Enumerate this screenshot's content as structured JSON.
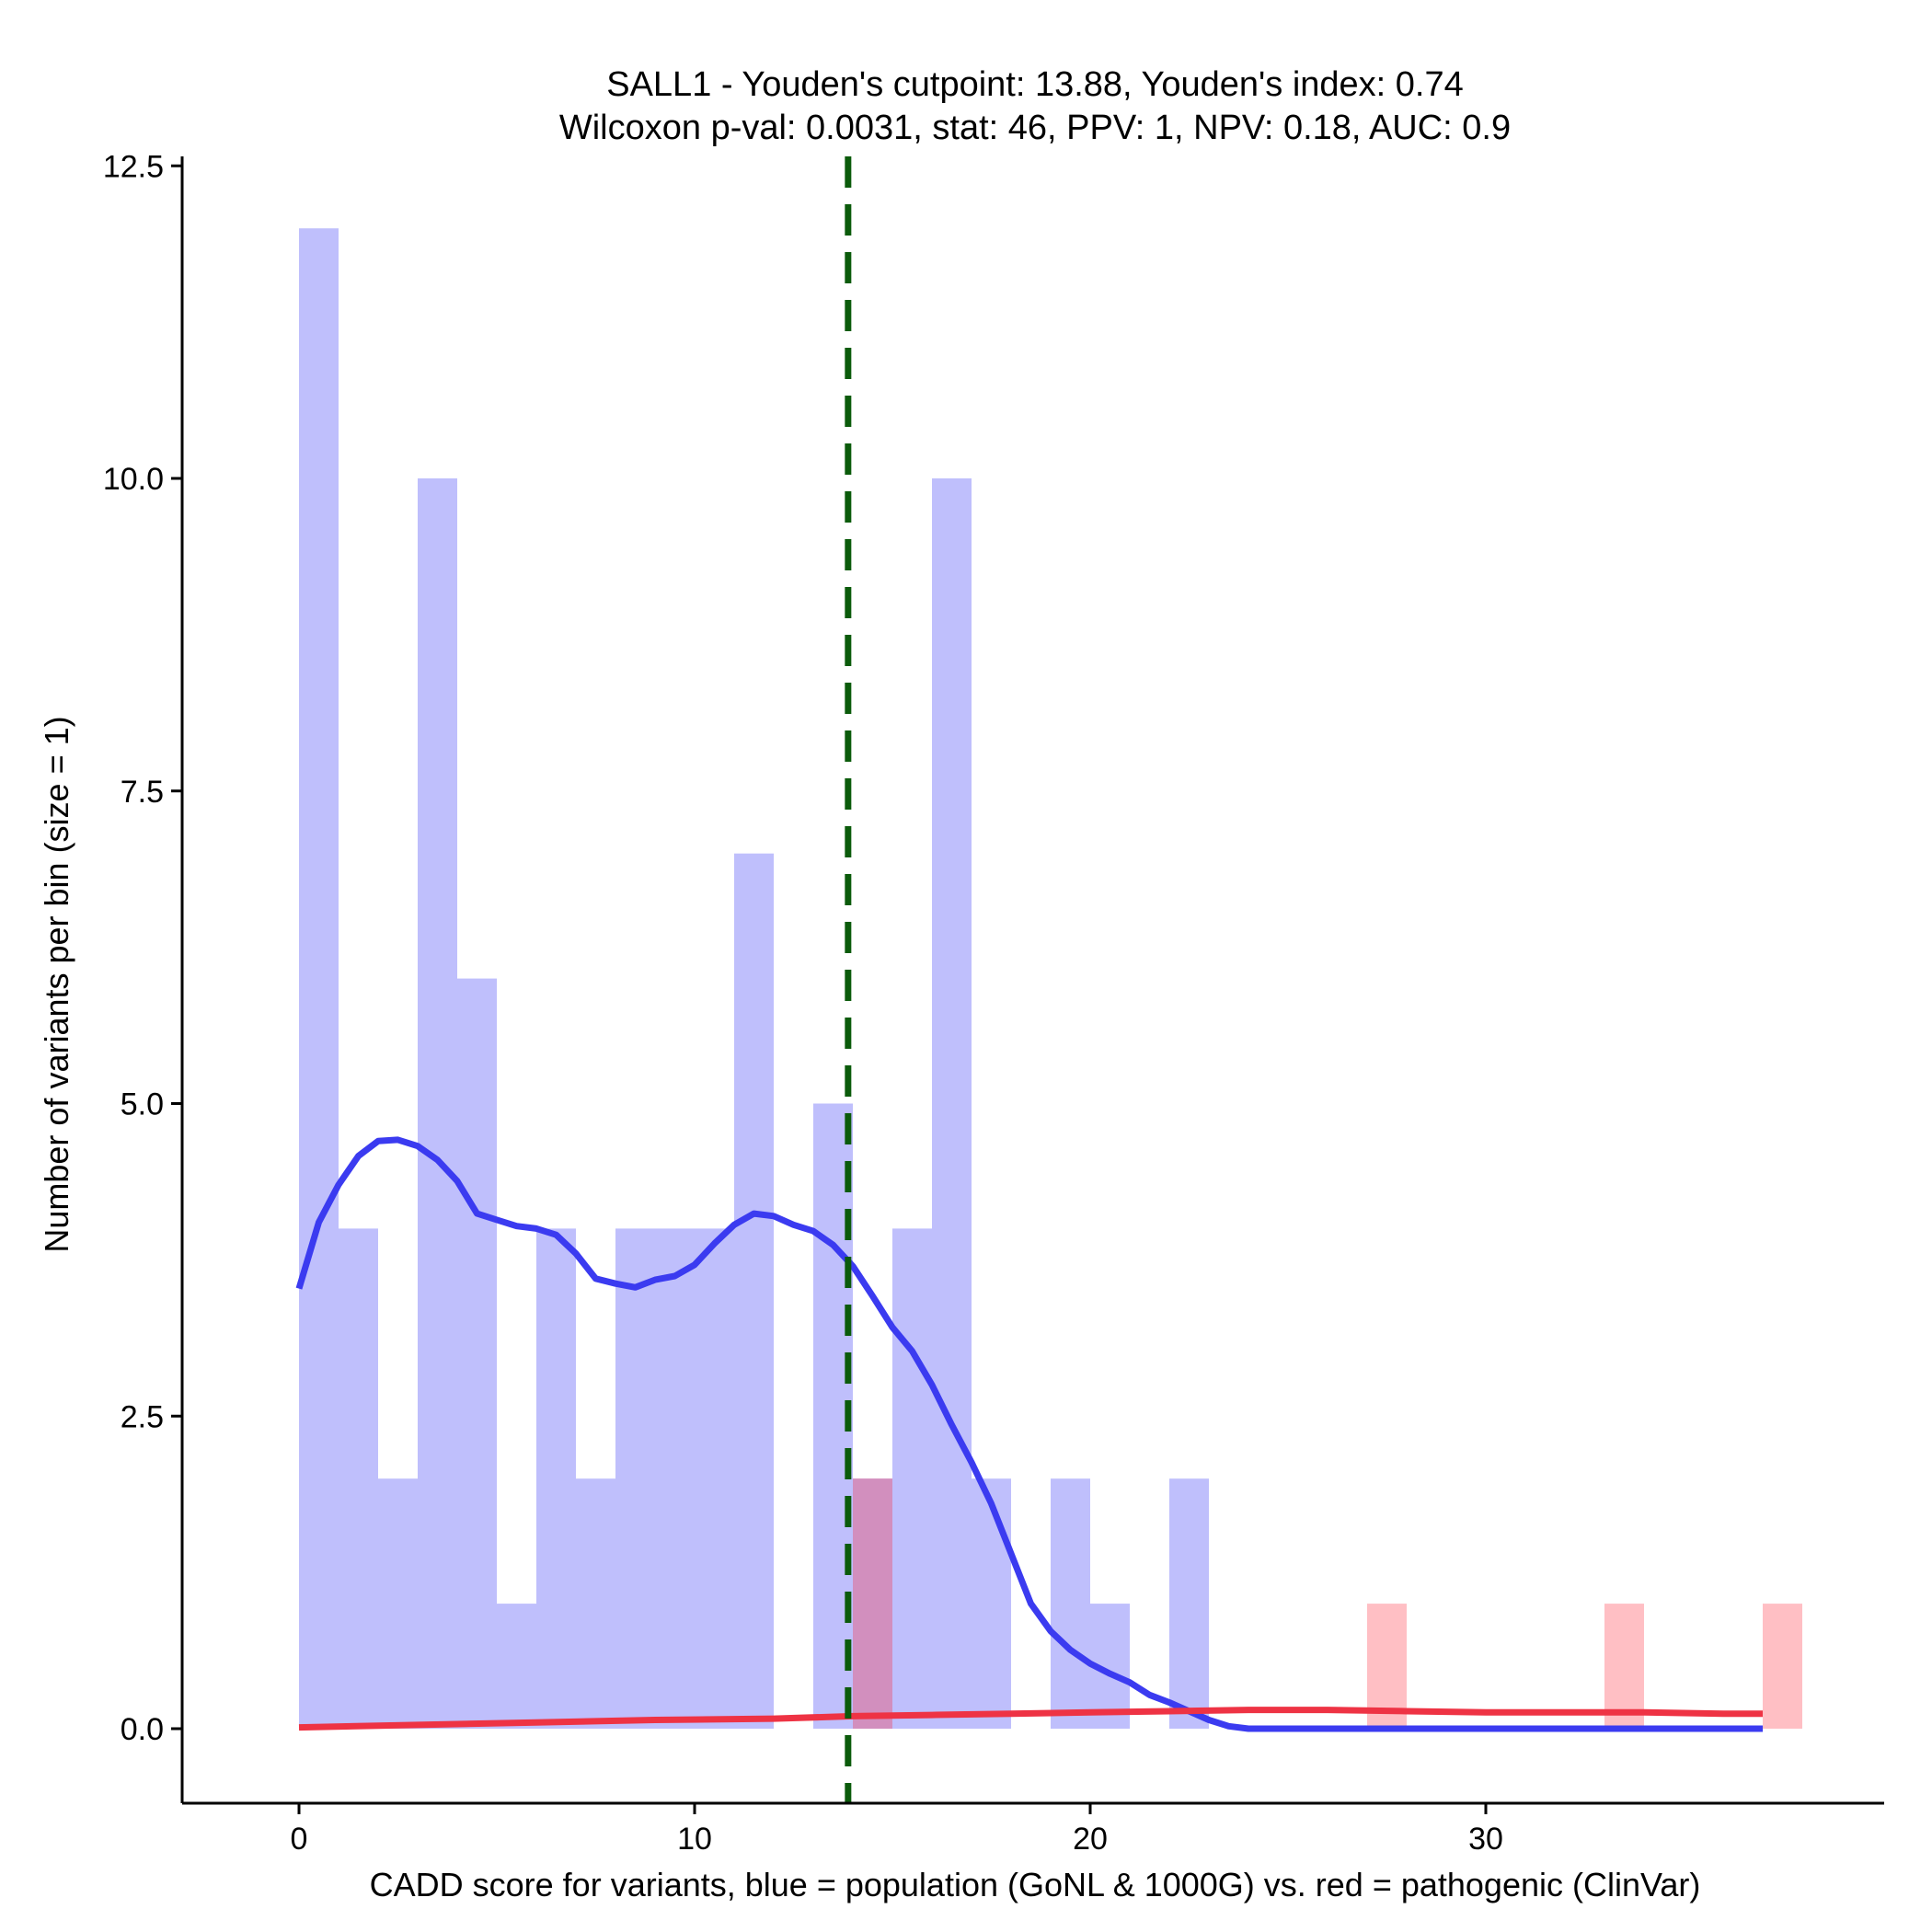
{
  "chart_data": {
    "type": "bar",
    "title_line1": "SALL1 - Youden's cutpoint: 13.88, Youden's index: 0.74",
    "title_line2": "Wilcoxon p-val: 0.0031, stat: 46, PPV: 1, NPV: 0.18, AUC: 0.9",
    "xlabel": "CADD score for variants, blue = population (GoNL & 1000G) vs. red = pathogenic (ClinVar)",
    "ylabel": "Number of variants per bin (size = 1)",
    "xlim": [
      -3,
      40
    ],
    "ylim": [
      -0.6,
      12.6
    ],
    "x_ticks": [
      0,
      10,
      20,
      30
    ],
    "x_tick_labels": [
      "0",
      "10",
      "20",
      "30"
    ],
    "y_ticks": [
      0,
      2.5,
      5,
      7.5,
      10,
      12.5
    ],
    "y_tick_labels": [
      "0.0",
      "2.5",
      "5.0",
      "7.5",
      "10.0",
      "12.5"
    ],
    "bin_width": 1,
    "cutpoint": 13.88,
    "colors": {
      "population_bar": "#bfbffc",
      "pathogenic_bar": "#ffbfc4",
      "overlap_bar": "#d28fbe",
      "population_line": "#3b3bf0",
      "pathogenic_line": "#ee3344",
      "cutpoint_line": "#0b5b0b"
    },
    "series": [
      {
        "name": "population (GoNL & 1000G)",
        "bin_starts": [
          0,
          1,
          2,
          3,
          4,
          5,
          6,
          7,
          8,
          9,
          10,
          11,
          13,
          14,
          15,
          16,
          17,
          19,
          20,
          22
        ],
        "values": [
          12,
          4,
          2,
          10,
          6,
          1,
          4,
          2,
          4,
          4,
          4,
          7,
          5,
          2,
          4,
          10,
          2,
          2,
          1,
          2
        ]
      },
      {
        "name": "pathogenic (ClinVar)",
        "bin_starts": [
          14,
          27,
          33,
          37
        ],
        "values": [
          2,
          1,
          1,
          1
        ]
      }
    ],
    "density_population": {
      "x": [
        0,
        0.5,
        1,
        1.5,
        2,
        2.5,
        3,
        3.5,
        4,
        4.5,
        5,
        5.5,
        6,
        6.5,
        7,
        7.5,
        8,
        8.5,
        9,
        9.5,
        10,
        10.5,
        11,
        11.5,
        12,
        12.5,
        13,
        13.5,
        14,
        14.5,
        15,
        15.5,
        16,
        16.5,
        17,
        17.5,
        18,
        18.5,
        19,
        19.5,
        20,
        20.5,
        21,
        21.5,
        22,
        22.5,
        23,
        23.5,
        24,
        24.5,
        25,
        25.5,
        26,
        26.5,
        27,
        27.5,
        28,
        29,
        30,
        31,
        32,
        33,
        34,
        35,
        36,
        37
      ],
      "y": [
        3.52,
        4.05,
        4.35,
        4.58,
        4.7,
        4.71,
        4.66,
        4.55,
        4.38,
        4.12,
        4.07,
        4.02,
        4.0,
        3.95,
        3.8,
        3.6,
        3.56,
        3.53,
        3.59,
        3.62,
        3.71,
        3.88,
        4.03,
        4.12,
        4.1,
        4.03,
        3.98,
        3.87,
        3.7,
        3.46,
        3.21,
        3.02,
        2.75,
        2.43,
        2.13,
        1.8,
        1.4,
        1.0,
        0.78,
        0.63,
        0.52,
        0.44,
        0.37,
        0.27,
        0.21,
        0.14,
        0.07,
        0.02,
        0.0,
        0.0,
        0.0,
        0.0,
        0.0,
        0.0,
        0.0,
        0.0,
        0.0,
        0.0,
        0.0,
        0.0,
        0.0,
        0.0,
        0.0,
        0.0,
        0.0,
        0.0
      ]
    },
    "density_pathogenic": {
      "x": [
        0,
        3,
        6,
        9,
        12,
        14,
        16,
        18,
        20,
        22,
        24,
        26,
        28,
        30,
        32,
        34,
        36,
        37
      ],
      "y": [
        0.01,
        0.03,
        0.05,
        0.07,
        0.08,
        0.1,
        0.11,
        0.12,
        0.13,
        0.14,
        0.15,
        0.15,
        0.14,
        0.13,
        0.13,
        0.13,
        0.12,
        0.12
      ]
    }
  }
}
